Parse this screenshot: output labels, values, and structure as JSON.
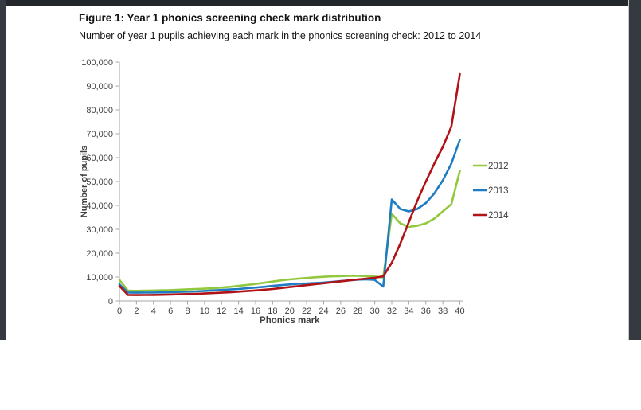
{
  "figure": {
    "title": "Figure 1: Year 1 phonics screening check mark distribution",
    "subtitle": "Number of year 1 pupils achieving each mark in the phonics screening check: 2012 to 2014"
  },
  "colors": {
    "series_2012": "#92C83D",
    "series_2013": "#1F7CC2",
    "series_2014": "#B01215",
    "axis_line": "#a6a6a6",
    "tick_label": "#3f3f3f",
    "frame_dark": "#343a40"
  },
  "chart_data": {
    "type": "line",
    "title": "",
    "xlabel": "Phonics mark",
    "ylabel": "Number of pupils",
    "xlim": [
      0,
      40
    ],
    "ylim": [
      0,
      100000
    ],
    "grid": false,
    "legend_position": "right",
    "x_tick_labels": [
      "0",
      "2",
      "4",
      "6",
      "8",
      "10",
      "12",
      "14",
      "16",
      "18",
      "20",
      "22",
      "24",
      "26",
      "28",
      "30",
      "32",
      "34",
      "36",
      "38",
      "40"
    ],
    "y_tick_labels": [
      "0",
      "10,000",
      "20,000",
      "30,000",
      "40,000",
      "50,000",
      "60,000",
      "70,000",
      "80,000",
      "90,000",
      "100,000"
    ],
    "x": [
      0,
      1,
      2,
      3,
      4,
      5,
      6,
      7,
      8,
      9,
      10,
      11,
      12,
      13,
      14,
      15,
      16,
      17,
      18,
      19,
      20,
      21,
      22,
      23,
      24,
      25,
      26,
      27,
      28,
      29,
      30,
      31,
      32,
      33,
      34,
      35,
      36,
      37,
      38,
      39,
      40
    ],
    "series": [
      {
        "name": "2012",
        "color": "#92C83D",
        "values": [
          8800,
          4300,
          4250,
          4300,
          4350,
          4450,
          4550,
          4700,
          4850,
          5000,
          5150,
          5300,
          5600,
          5900,
          6300,
          6700,
          7100,
          7600,
          8100,
          8600,
          9000,
          9300,
          9600,
          9900,
          10100,
          10300,
          10400,
          10500,
          10500,
          10400,
          10200,
          9800,
          36500,
          32500,
          31000,
          31500,
          32500,
          34500,
          37500,
          40500,
          54500
        ]
      },
      {
        "name": "2013",
        "color": "#1F7CC2",
        "values": [
          7000,
          3500,
          3450,
          3500,
          3550,
          3600,
          3700,
          3800,
          3900,
          4000,
          4200,
          4400,
          4600,
          4800,
          5000,
          5300,
          5600,
          5900,
          6300,
          6600,
          6900,
          7200,
          7300,
          7500,
          7700,
          8000,
          8300,
          8600,
          8900,
          9000,
          8800,
          6000,
          42500,
          38500,
          37500,
          38500,
          41000,
          45000,
          50500,
          57500,
          67500
        ]
      },
      {
        "name": "2014",
        "color": "#B01215",
        "values": [
          6300,
          2500,
          2450,
          2500,
          2550,
          2600,
          2700,
          2800,
          2900,
          3000,
          3150,
          3300,
          3450,
          3650,
          3900,
          4150,
          4400,
          4700,
          5000,
          5400,
          5800,
          6200,
          6600,
          7000,
          7400,
          7800,
          8200,
          8600,
          9000,
          9300,
          9700,
          10300,
          16000,
          24000,
          33000,
          42000,
          50000,
          57500,
          64500,
          73000,
          95000
        ]
      }
    ]
  }
}
